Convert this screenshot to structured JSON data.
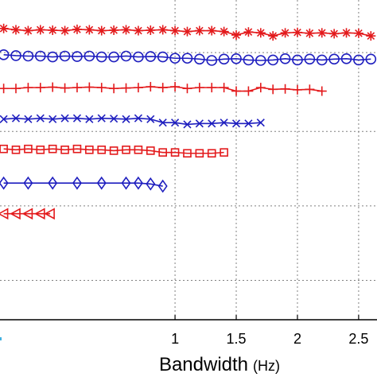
{
  "chart_data": {
    "type": "line",
    "xlabel": "Bandwidth",
    "xlabel_unit": "(Hz)",
    "xlim": [
      -0.43,
      2.65
    ],
    "ylim": [
      0,
      7.3
    ],
    "x_ticks": [
      {
        "value": 1,
        "label": "1"
      },
      {
        "value": 1.5,
        "label": "1.5"
      },
      {
        "value": 2,
        "label": "2"
      },
      {
        "value": 2.5,
        "label": "2.5"
      }
    ],
    "y_gridlines": [
      0.9,
      2.6,
      4.3,
      6.1
    ],
    "grid": true,
    "colors": {
      "red": "#e31a1c",
      "blue": "#1f1fbf",
      "axis": "#000000",
      "grid": "#808080",
      "stray": "#40b0e0"
    },
    "series": [
      {
        "marker": "asterisk",
        "color": "#e31a1c",
        "x": [
          -0.4,
          -0.3,
          -0.2,
          -0.1,
          0,
          0.1,
          0.2,
          0.3,
          0.4,
          0.5,
          0.6,
          0.7,
          0.8,
          0.9,
          1.0,
          1.1,
          1.2,
          1.3,
          1.4,
          1.5,
          1.6,
          1.7,
          1.8,
          1.9,
          2.0,
          2.1,
          2.2,
          2.3,
          2.4,
          2.5,
          2.6
        ],
        "y": [
          6.65,
          6.62,
          6.6,
          6.62,
          6.61,
          6.6,
          6.63,
          6.62,
          6.6,
          6.61,
          6.62,
          6.6,
          6.61,
          6.62,
          6.6,
          6.58,
          6.6,
          6.6,
          6.58,
          6.5,
          6.57,
          6.55,
          6.48,
          6.55,
          6.56,
          6.54,
          6.55,
          6.53,
          6.55,
          6.54,
          6.48
        ]
      },
      {
        "marker": "circle",
        "color": "#1f1fbf",
        "x": [
          -0.4,
          -0.3,
          -0.2,
          -0.1,
          0,
          0.1,
          0.2,
          0.3,
          0.4,
          0.5,
          0.6,
          0.7,
          0.8,
          0.9,
          1.0,
          1.1,
          1.2,
          1.3,
          1.4,
          1.5,
          1.6,
          1.7,
          1.8,
          1.9,
          2.0,
          2.1,
          2.2,
          2.3,
          2.4,
          2.5,
          2.6
        ],
        "y": [
          6.05,
          6.03,
          6.02,
          6.02,
          6.0,
          6.02,
          6.01,
          6.02,
          6.0,
          6.0,
          6.02,
          6.0,
          6.01,
          6.0,
          5.97,
          5.97,
          5.95,
          5.92,
          5.95,
          5.96,
          5.93,
          5.92,
          5.93,
          5.96,
          5.93,
          5.95,
          5.93,
          5.95,
          5.96,
          5.93,
          5.95
        ]
      },
      {
        "marker": "plus",
        "color": "#e31a1c",
        "x": [
          -0.4,
          -0.3,
          -0.2,
          -0.1,
          0,
          0.1,
          0.2,
          0.3,
          0.4,
          0.5,
          0.6,
          0.7,
          0.8,
          0.9,
          1.0,
          1.1,
          1.2,
          1.3,
          1.4,
          1.5,
          1.6,
          1.7,
          1.8,
          1.9,
          2.0,
          2.1,
          2.2
        ],
        "y": [
          5.28,
          5.28,
          5.3,
          5.3,
          5.31,
          5.29,
          5.3,
          5.31,
          5.3,
          5.28,
          5.29,
          5.3,
          5.32,
          5.3,
          5.32,
          5.28,
          5.3,
          5.3,
          5.3,
          5.22,
          5.22,
          5.3,
          5.26,
          5.27,
          5.25,
          5.26,
          5.22
        ]
      },
      {
        "marker": "x",
        "color": "#1f1fbf",
        "x": [
          -0.4,
          -0.3,
          -0.2,
          -0.1,
          0,
          0.1,
          0.2,
          0.3,
          0.4,
          0.5,
          0.6,
          0.7,
          0.8,
          0.9,
          1.0,
          1.1,
          1.2,
          1.3,
          1.4,
          1.5,
          1.6,
          1.7
        ],
        "y": [
          4.58,
          4.6,
          4.58,
          4.6,
          4.58,
          4.6,
          4.6,
          4.58,
          4.6,
          4.59,
          4.58,
          4.6,
          4.58,
          4.5,
          4.5,
          4.46,
          4.48,
          4.48,
          4.5,
          4.48,
          4.48,
          4.5
        ]
      },
      {
        "marker": "square",
        "color": "#e31a1c",
        "x": [
          -0.4,
          -0.3,
          -0.2,
          -0.1,
          0,
          0.1,
          0.2,
          0.3,
          0.4,
          0.5,
          0.6,
          0.7,
          0.8,
          0.9,
          1.0,
          1.1,
          1.2,
          1.3,
          1.4
        ],
        "y": [
          3.9,
          3.88,
          3.9,
          3.88,
          3.9,
          3.88,
          3.9,
          3.88,
          3.88,
          3.86,
          3.88,
          3.88,
          3.86,
          3.82,
          3.82,
          3.8,
          3.8,
          3.8,
          3.82
        ]
      },
      {
        "marker": "diamond",
        "color": "#1f1fbf",
        "x": [
          -0.4,
          -0.2,
          0,
          0.2,
          0.4,
          0.6,
          0.7,
          0.8,
          0.9
        ],
        "y": [
          3.12,
          3.12,
          3.12,
          3.12,
          3.12,
          3.12,
          3.12,
          3.1,
          3.05
        ]
      },
      {
        "marker": "triangle-left",
        "color": "#e31a1c",
        "x": [
          -0.4,
          -0.3,
          -0.2,
          -0.1,
          -0.02
        ],
        "y": [
          2.42,
          2.42,
          2.42,
          2.42,
          2.42
        ]
      }
    ]
  }
}
